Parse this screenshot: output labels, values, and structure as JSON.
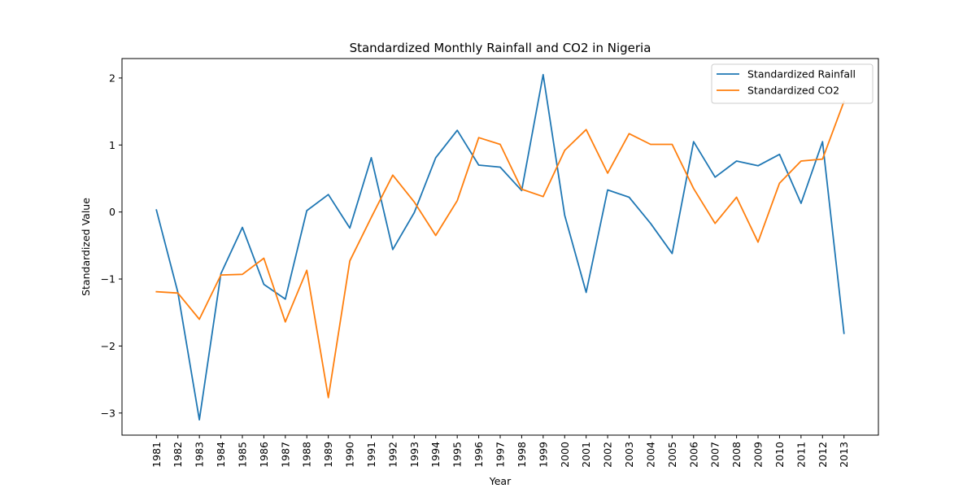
{
  "chart_data": {
    "type": "line",
    "title": "Standardized Monthly Rainfall and CO2 in Nigeria",
    "xlabel": "Year",
    "ylabel": "Standardized Value",
    "categories": [
      "1981",
      "1982",
      "1983",
      "1984",
      "1985",
      "1986",
      "1987",
      "1988",
      "1989",
      "1990",
      "1991",
      "1992",
      "1993",
      "1994",
      "1995",
      "1996",
      "1997",
      "1998",
      "1999",
      "2000",
      "2001",
      "2002",
      "2003",
      "2004",
      "2005",
      "2006",
      "2007",
      "2008",
      "2009",
      "2010",
      "2011",
      "2012",
      "2013"
    ],
    "yticks": [
      -3,
      -2,
      -1,
      0,
      1,
      2
    ],
    "ytick_labels": [
      "−3",
      "−2",
      "−1",
      "0",
      "1",
      "2"
    ],
    "ylim": [
      -3.33,
      2.29
    ],
    "grid": false,
    "legend_position": "top-right",
    "series": [
      {
        "name": "Standardized Rainfall",
        "color": "#1f77b4",
        "values": [
          0.03,
          -1.2,
          -3.1,
          -0.92,
          -0.23,
          -1.08,
          -1.3,
          0.02,
          0.26,
          -0.24,
          0.81,
          -0.56,
          -0.01,
          0.81,
          1.22,
          0.7,
          0.67,
          0.32,
          2.05,
          -0.05,
          -1.2,
          0.33,
          0.22,
          -0.17,
          -0.62,
          1.05,
          0.52,
          0.76,
          0.69,
          0.86,
          0.13,
          1.05,
          -1.81
        ]
      },
      {
        "name": "Standardized CO2",
        "color": "#ff7f0e",
        "values": [
          -1.19,
          -1.21,
          -1.6,
          -0.94,
          -0.93,
          -0.69,
          -1.64,
          -0.87,
          -2.77,
          -0.73,
          -0.08,
          0.55,
          0.15,
          -0.35,
          0.17,
          1.11,
          1.01,
          0.34,
          0.23,
          0.92,
          1.23,
          0.58,
          1.17,
          1.01,
          1.01,
          0.35,
          -0.17,
          0.22,
          -0.45,
          0.43,
          0.76,
          0.79,
          1.65
        ]
      }
    ]
  }
}
